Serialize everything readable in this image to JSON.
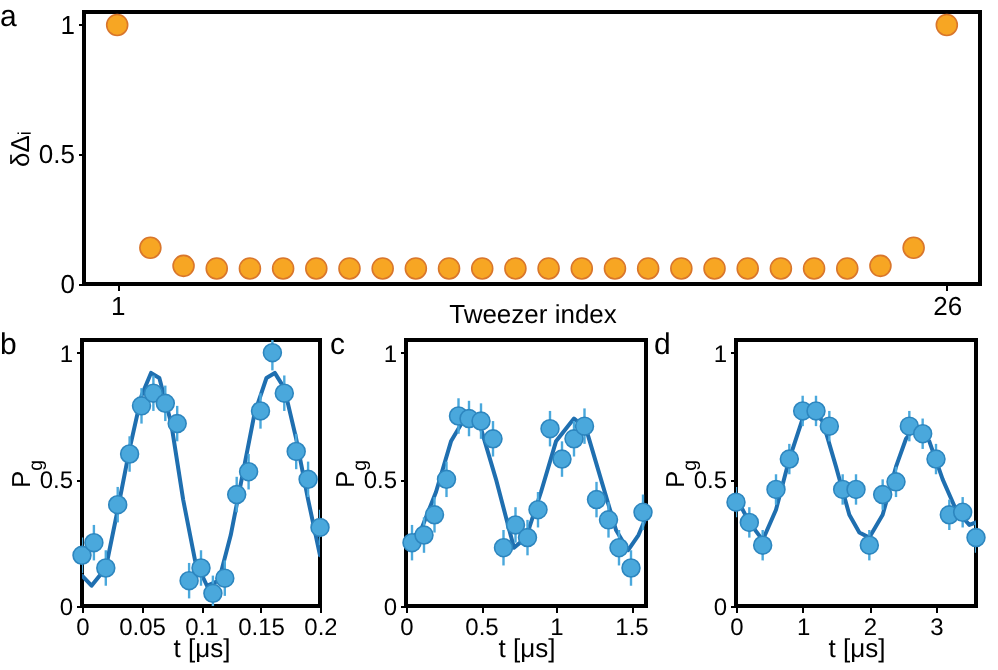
{
  "chart_data": [
    {
      "type": "scatter",
      "annotations": [
        "a"
      ],
      "xlabel": "Tweezer index",
      "ylabel": "δΔᵢ",
      "marker": "circle",
      "xlim": [
        0,
        27
      ],
      "ylim": [
        0,
        1.05
      ],
      "xticks": [
        1,
        26
      ],
      "yticks": [
        0,
        0.5,
        1
      ],
      "x": [
        1,
        2,
        3,
        4,
        5,
        6,
        7,
        8,
        9,
        10,
        11,
        12,
        13,
        14,
        15,
        16,
        17,
        18,
        19,
        20,
        21,
        22,
        23,
        24,
        25,
        26
      ],
      "series": [
        {
          "color": "#f7a623",
          "values": [
            1,
            0.14,
            0.07,
            0.06,
            0.06,
            0.06,
            0.06,
            0.06,
            0.06,
            0.06,
            0.06,
            0.06,
            0.06,
            0.06,
            0.06,
            0.06,
            0.06,
            0.06,
            0.06,
            0.06,
            0.06,
            0.06,
            0.06,
            0.07,
            0.14,
            1
          ]
        }
      ]
    },
    {
      "type": "scatter",
      "annotations": [
        "b"
      ],
      "xlabel": "t [μs]",
      "ylabel": "P$_{g}$",
      "xlim": [
        0,
        0.2
      ],
      "ylim": [
        0,
        1.05
      ],
      "xticks": [
        0,
        0.05,
        0.1,
        0.15,
        0.2
      ],
      "yticks": [
        0,
        0.5,
        1
      ],
      "series": [
        {
          "type": "line",
          "color": "#1f6fb0",
          "x": [
            0,
            0.008,
            0.02,
            0.03,
            0.04,
            0.05,
            0.058,
            0.065,
            0.075,
            0.085,
            0.095,
            0.105,
            0.115,
            0.125,
            0.135,
            0.145,
            0.155,
            0.162,
            0.17,
            0.18,
            0.19,
            0.2
          ],
          "values": [
            0.12,
            0.08,
            0.15,
            0.38,
            0.62,
            0.83,
            0.92,
            0.9,
            0.72,
            0.42,
            0.18,
            0.08,
            0.1,
            0.28,
            0.52,
            0.76,
            0.9,
            0.92,
            0.86,
            0.66,
            0.42,
            0.2
          ]
        },
        {
          "color": "#4aa8dc",
          "marker": "circle",
          "x": [
            0,
            0.01,
            0.02,
            0.03,
            0.04,
            0.05,
            0.06,
            0.07,
            0.08,
            0.09,
            0.1,
            0.11,
            0.12,
            0.13,
            0.14,
            0.15,
            0.16,
            0.17,
            0.18,
            0.19,
            0.2
          ],
          "values": [
            0.2,
            0.25,
            0.15,
            0.4,
            0.6,
            0.79,
            0.84,
            0.8,
            0.72,
            0.1,
            0.15,
            0.05,
            0.11,
            0.44,
            0.53,
            0.77,
            1,
            0.84,
            0.61,
            0.5,
            0.31
          ],
          "errors": [
            0.07,
            0.07,
            0.07,
            0.07,
            0.07,
            0.07,
            0.07,
            0.07,
            0.07,
            0.07,
            0.07,
            0.07,
            0.07,
            0.07,
            0.07,
            0.07,
            0.07,
            0.07,
            0.07,
            0.07,
            0.07
          ]
        }
      ]
    },
    {
      "type": "scatter",
      "annotations": [
        "c"
      ],
      "xlabel": "t [μs]",
      "ylabel": "P$_{g}$",
      "xlim": [
        0,
        1.6
      ],
      "ylim": [
        0,
        1.05
      ],
      "xticks": [
        0,
        0.5,
        1,
        1.5
      ],
      "yticks": [
        0,
        0.5,
        1
      ],
      "series": [
        {
          "type": "line",
          "color": "#1f6fb0",
          "x": [
            0,
            0.1,
            0.2,
            0.3,
            0.4,
            0.5,
            0.6,
            0.72,
            0.8,
            0.9,
            1.0,
            1.12,
            1.2,
            1.3,
            1.4,
            1.48,
            1.55,
            1.6
          ],
          "values": [
            0.25,
            0.3,
            0.45,
            0.65,
            0.75,
            0.7,
            0.5,
            0.23,
            0.27,
            0.45,
            0.65,
            0.74,
            0.7,
            0.5,
            0.3,
            0.22,
            0.28,
            0.35
          ]
        },
        {
          "color": "#4aa8dc",
          "marker": "circle",
          "x": [
            0.04,
            0.12,
            0.19,
            0.27,
            0.35,
            0.42,
            0.5,
            0.58,
            0.65,
            0.73,
            0.81,
            0.88,
            0.96,
            1.04,
            1.12,
            1.19,
            1.27,
            1.35,
            1.42,
            1.5,
            1.58
          ],
          "values": [
            0.25,
            0.28,
            0.36,
            0.5,
            0.75,
            0.74,
            0.73,
            0.66,
            0.23,
            0.32,
            0.27,
            0.38,
            0.7,
            0.58,
            0.66,
            0.71,
            0.42,
            0.34,
            0.23,
            0.15,
            0.37
          ],
          "errors": [
            0.07,
            0.07,
            0.07,
            0.07,
            0.07,
            0.07,
            0.07,
            0.07,
            0.07,
            0.07,
            0.07,
            0.07,
            0.07,
            0.07,
            0.07,
            0.07,
            0.07,
            0.07,
            0.07,
            0.07,
            0.07
          ]
        }
      ]
    },
    {
      "type": "scatter",
      "annotations": [
        "d"
      ],
      "xlabel": "t [μs]",
      "ylabel": "P$_{g}$",
      "xlim": [
        0,
        3.6
      ],
      "ylim": [
        0,
        1.05
      ],
      "xticks": [
        0,
        1,
        2,
        3
      ],
      "yticks": [
        0,
        0.5,
        1
      ],
      "series": [
        {
          "type": "line",
          "color": "#1f6fb0",
          "x": [
            0,
            0.2,
            0.4,
            0.6,
            0.8,
            1.0,
            1.15,
            1.3,
            1.5,
            1.7,
            1.85,
            2.0,
            2.2,
            2.4,
            2.55,
            2.7,
            2.9,
            3.1,
            3.3,
            3.5,
            3.6
          ],
          "values": [
            0.43,
            0.33,
            0.26,
            0.38,
            0.58,
            0.74,
            0.77,
            0.73,
            0.55,
            0.36,
            0.29,
            0.27,
            0.36,
            0.55,
            0.66,
            0.71,
            0.65,
            0.5,
            0.38,
            0.32,
            0.33
          ]
        },
        {
          "color": "#4aa8dc",
          "marker": "circle",
          "x": [
            0,
            0.2,
            0.4,
            0.6,
            0.8,
            1.0,
            1.2,
            1.4,
            1.6,
            1.8,
            2.0,
            2.2,
            2.4,
            2.6,
            2.8,
            3.0,
            3.2,
            3.4,
            3.6
          ],
          "values": [
            0.41,
            0.33,
            0.24,
            0.46,
            0.58,
            0.77,
            0.77,
            0.71,
            0.46,
            0.46,
            0.24,
            0.44,
            0.49,
            0.71,
            0.68,
            0.58,
            0.36,
            0.37,
            0.27
          ],
          "errors": [
            0.06,
            0.06,
            0.06,
            0.06,
            0.06,
            0.06,
            0.06,
            0.06,
            0.06,
            0.06,
            0.06,
            0.06,
            0.06,
            0.06,
            0.06,
            0.06,
            0.06,
            0.06,
            0.06
          ]
        }
      ]
    }
  ]
}
